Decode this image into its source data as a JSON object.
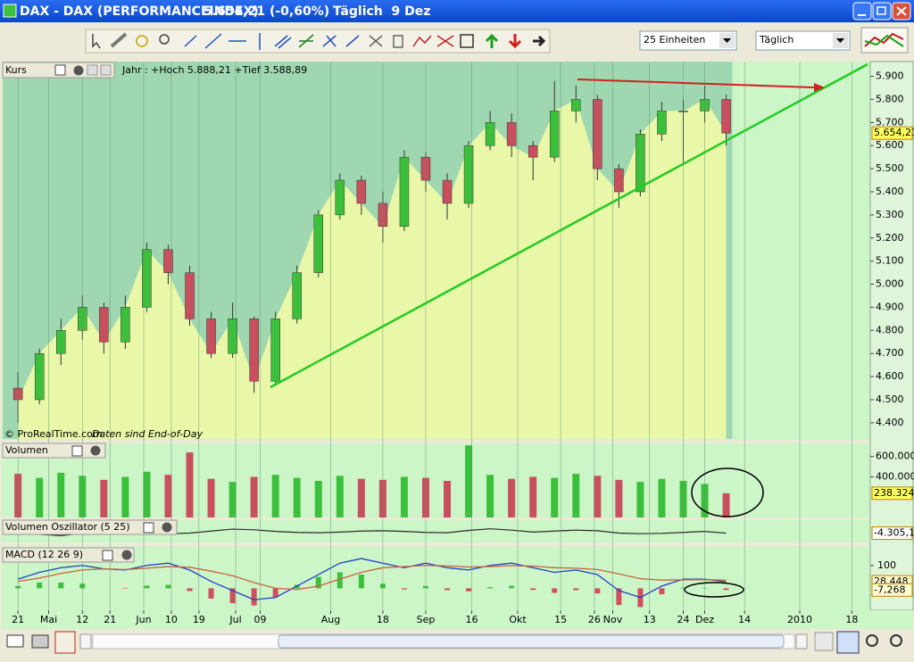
{
  "window": {
    "title": "DAX - DAX (PERFORMANCEINDEX)",
    "quote": "5.654,21 (-0,60%)",
    "period": "Täglich  9 Dez"
  },
  "toolbar": {
    "units": "25 Einheiten",
    "period": "Täglich"
  },
  "chart_data": [
    {
      "type": "candlestick",
      "title": "Kurs",
      "subtitle": "Jahr : +Hoch 5.888,21 +Tief 3.588,89",
      "annotations": [
        "© ProRealTime.com",
        "Daten sind End-of-Day"
      ],
      "x": [
        0,
        7,
        14,
        21,
        28,
        35,
        42,
        49,
        56,
        63,
        70,
        77,
        84,
        91,
        98,
        105,
        112,
        119,
        126,
        133,
        140,
        147,
        154,
        161,
        168,
        175,
        182,
        189,
        196,
        203,
        210,
        217,
        224,
        231
      ],
      "xlim": [
        -5,
        278
      ],
      "open": [
        4550,
        4500,
        4700,
        4800,
        4900,
        4750,
        4900,
        5150,
        5050,
        4850,
        4700,
        4850,
        4580,
        4850,
        5050,
        5300,
        5450,
        5350,
        5250,
        5550,
        5450,
        5350,
        5600,
        5700,
        5600,
        5550,
        5750,
        5800,
        5500,
        5400,
        5650,
        5750,
        5750,
        5800
      ],
      "high": [
        4620,
        4720,
        4850,
        4950,
        4920,
        4950,
        5180,
        5170,
        5080,
        4880,
        4920,
        4860,
        4880,
        5080,
        5320,
        5480,
        5470,
        5400,
        5580,
        5570,
        5480,
        5620,
        5750,
        5740,
        5620,
        5880,
        5860,
        5820,
        5520,
        5670,
        5790,
        5800,
        5860,
        5820
      ],
      "low": [
        4400,
        4480,
        4650,
        4760,
        4700,
        4720,
        4880,
        5000,
        4820,
        4680,
        4680,
        4530,
        4560,
        4830,
        5030,
        5280,
        5300,
        5180,
        5230,
        5400,
        5280,
        5330,
        5580,
        5550,
        5450,
        5530,
        5700,
        5450,
        5330,
        5380,
        5620,
        5520,
        5700,
        5600
      ],
      "close": [
        4500,
        4700,
        4800,
        4900,
        4750,
        4900,
        5150,
        5050,
        4850,
        4700,
        4850,
        4580,
        4850,
        5050,
        5300,
        5450,
        5350,
        5250,
        5550,
        5450,
        5350,
        5600,
        5700,
        5600,
        5550,
        5750,
        5800,
        5500,
        5400,
        5650,
        5750,
        5750,
        5800,
        5654.21
      ],
      "value_labels": [
        null,
        null,
        null,
        null,
        null,
        null,
        null,
        null,
        null,
        null,
        null,
        null,
        null,
        null,
        null,
        null,
        null,
        null,
        null,
        null,
        null,
        null,
        null,
        null,
        null,
        null,
        null,
        null,
        null,
        null,
        null,
        null,
        null,
        "5.654,21"
      ],
      "up_color": "#3cc03c",
      "down_color": "#c8505e",
      "ylim": [
        4330,
        5960
      ],
      "yticks": [
        {
          "value": 4400,
          "label": "4.400"
        },
        {
          "value": 4500,
          "label": "4.500"
        },
        {
          "value": 4600,
          "label": "4.600"
        },
        {
          "value": 4700,
          "label": "4.700"
        },
        {
          "value": 4800,
          "label": "4.800"
        },
        {
          "value": 4900,
          "label": "4.900"
        },
        {
          "value": 5000,
          "label": "5.000"
        },
        {
          "value": 5100,
          "label": "5.100"
        },
        {
          "value": 5200,
          "label": "5.200"
        },
        {
          "value": 5300,
          "label": "5.300"
        },
        {
          "value": 5400,
          "label": "5.400"
        },
        {
          "value": 5500,
          "label": "5.500"
        },
        {
          "value": 5600,
          "label": "5.600"
        },
        {
          "value": 5700,
          "label": "5.700"
        },
        {
          "value": 5800,
          "label": "5.800"
        },
        {
          "value": 5900,
          "label": "5.900"
        }
      ]
    },
    {
      "type": "bar",
      "title": "Volumen",
      "xlim": [
        -5,
        278
      ],
      "values": [
        430000,
        390000,
        440000,
        410000,
        370000,
        400000,
        450000,
        420000,
        640000,
        380000,
        350000,
        400000,
        420000,
        390000,
        360000,
        410000,
        380000,
        370000,
        400000,
        390000,
        360000,
        710000,
        420000,
        380000,
        400000,
        390000,
        430000,
        410000,
        370000,
        350000,
        380000,
        360000,
        330000,
        238324
      ],
      "value_labels": [
        null,
        null,
        null,
        null,
        null,
        null,
        null,
        null,
        null,
        null,
        null,
        null,
        null,
        null,
        null,
        null,
        null,
        null,
        null,
        null,
        null,
        null,
        null,
        null,
        null,
        null,
        null,
        null,
        null,
        null,
        null,
        null,
        null,
        "238.324"
      ],
      "ylim": [
        0,
        720000
      ],
      "yticks": [
        {
          "value": 400000,
          "label": "400.000"
        },
        {
          "value": 600000,
          "label": "600.000"
        }
      ]
    },
    {
      "type": "line",
      "title": "Volumen Oszillator (5 25)",
      "xlim": [
        -5,
        278
      ],
      "color": "#2a2a2a",
      "values": [
        0,
        -8000,
        -12000,
        -5000,
        3000,
        2000,
        -3000,
        -6000,
        -4000,
        2000,
        8000,
        6000,
        1000,
        -2000,
        -3000,
        -1000,
        2000,
        3000,
        1000,
        -2000,
        -3000,
        4000,
        9000,
        5000,
        -1000,
        2000,
        5000,
        3000,
        -4000,
        -6000,
        -5000,
        -2000,
        1000,
        -4305.1
      ],
      "value_labels": [
        null,
        null,
        null,
        null,
        null,
        null,
        null,
        null,
        null,
        null,
        null,
        null,
        null,
        null,
        null,
        null,
        null,
        null,
        null,
        null,
        null,
        null,
        null,
        null,
        null,
        null,
        null,
        null,
        null,
        null,
        null,
        null,
        null,
        "-4.305,1"
      ],
      "ylim": [
        -30000,
        30000
      ]
    },
    {
      "type": "macd",
      "title": "MACD (12 26 9)",
      "xlim": [
        -5,
        278
      ],
      "series": [
        {
          "color": "#2040c8",
          "values": [
            40,
            70,
            90,
            100,
            85,
            80,
            100,
            110,
            80,
            30,
            -10,
            -50,
            -40,
            10,
            60,
            110,
            130,
            110,
            90,
            110,
            90,
            80,
            100,
            110,
            90,
            70,
            80,
            60,
            -10,
            -40,
            10,
            40,
            40,
            28.448
          ],
          "value_labels": [
            null,
            null,
            null,
            null,
            null,
            null,
            null,
            null,
            null,
            null,
            null,
            null,
            null,
            null,
            null,
            null,
            null,
            null,
            null,
            null,
            null,
            null,
            null,
            null,
            null,
            null,
            null,
            null,
            null,
            null,
            null,
            null,
            null,
            "28,448"
          ]
        },
        {
          "color": "#c8643c",
          "values": [
            30,
            45,
            65,
            80,
            85,
            82,
            88,
            95,
            92,
            75,
            55,
            25,
            0,
            -5,
            10,
            40,
            70,
            90,
            95,
            100,
            98,
            93,
            95,
            99,
            97,
            90,
            88,
            82,
            63,
            42,
            36,
            37,
            38,
            35.716
          ]
        }
      ],
      "histogram": {
        "up_color": "#3cc03c",
        "down_color": "#d05060",
        "values": [
          10,
          25,
          25,
          20,
          0,
          -2,
          12,
          15,
          -12,
          -45,
          -65,
          -75,
          -40,
          15,
          50,
          70,
          60,
          20,
          -5,
          10,
          -8,
          -13,
          5,
          11,
          -7,
          -20,
          -8,
          -22,
          -73,
          -82,
          -26,
          3,
          2,
          -7.268
        ],
        "value_labels": [
          null,
          null,
          null,
          null,
          null,
          null,
          null,
          null,
          null,
          null,
          null,
          null,
          null,
          null,
          null,
          null,
          null,
          null,
          null,
          null,
          null,
          null,
          null,
          null,
          null,
          null,
          null,
          null,
          null,
          null,
          null,
          null,
          null,
          "-7,268"
        ]
      },
      "ylim": [
        -92,
        181
      ],
      "yticks": [
        100
      ],
      "xticks": [
        {
          "value": 0,
          "label": "21"
        },
        {
          "value": 10,
          "label": "Mai"
        },
        {
          "value": 21,
          "label": "12"
        },
        {
          "value": 30,
          "label": "21"
        },
        {
          "value": 41,
          "label": "Jun"
        },
        {
          "value": 50,
          "label": "10"
        },
        {
          "value": 59,
          "label": "19"
        },
        {
          "value": 71,
          "label": "Jul"
        },
        {
          "value": 79,
          "label": "09"
        },
        {
          "value": 102,
          "label": "Aug"
        },
        {
          "value": 119,
          "label": "18"
        },
        {
          "value": 133,
          "label": "Sep"
        },
        {
          "value": 148,
          "label": "16"
        },
        {
          "value": 163,
          "label": "Okt"
        },
        {
          "value": 177,
          "label": "15"
        },
        {
          "value": 188,
          "label": "26"
        },
        {
          "value": 194,
          "label": "Nov"
        },
        {
          "value": 206,
          "label": "13"
        },
        {
          "value": 217,
          "label": "24"
        },
        {
          "value": 224,
          "label": "Dez"
        },
        {
          "value": 237,
          "label": "14"
        },
        {
          "value": 255,
          "label": "2010"
        },
        {
          "value": 272,
          "label": "18"
        }
      ]
    }
  ]
}
